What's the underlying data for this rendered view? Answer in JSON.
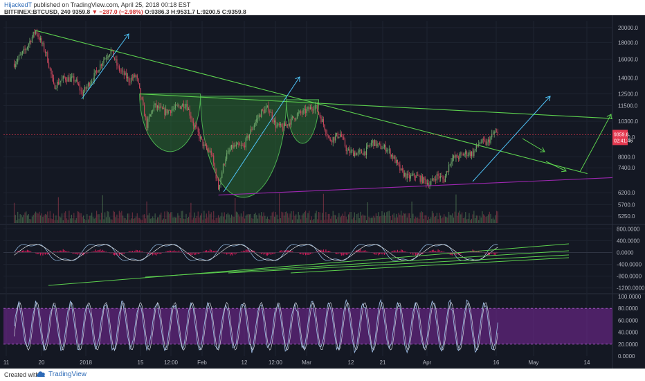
{
  "header": {
    "author": "HijackedT",
    "published": "published on TradingView.com, April 25, 2018 00:18 EST",
    "symbol": "BITFINEX:BTCUSD, 240",
    "last": "9359.8",
    "change_arrow": "▼",
    "change": "−287.0 (−2.98%)",
    "open": "O:9386.3",
    "high": "H:9531.7",
    "low": "L:9200.5",
    "close": "C:9359.8"
  },
  "footer": {
    "created_with": "Created with",
    "brand": "TradingView"
  },
  "colors": {
    "background": "#141823",
    "up": "#6ea86a",
    "down": "#c8475c",
    "trend_green": "#4caf50",
    "cyan_arrow": "#4fc3f7",
    "purple_line": "#9c27b0",
    "macd_hist": "#e91e63",
    "stoch_band": "#7b2a9e",
    "price_badge": "#e53950"
  },
  "price_axis": {
    "ticks": [
      "20000.0",
      "18000.0",
      "16000.0",
      "14000.0",
      "12500.0",
      "11500.0",
      "10300.0",
      "9200.0",
      "8000.0",
      "7400.0",
      "6200.0",
      "5700.0",
      "5250.0"
    ],
    "badge_price": "9359.8",
    "badge_time": "02:41:46"
  },
  "macd_axis": {
    "ticks": [
      "800.0000",
      "400.0000",
      "0.0000",
      "-400.0000",
      "-800.0000",
      "-1200.0000"
    ]
  },
  "stoch_axis": {
    "ticks": [
      "100.0000",
      "80.0000",
      "60.0000",
      "40.0000",
      "20.0000",
      "0.0000"
    ]
  },
  "time_axis": {
    "ticks": [
      "11",
      "20",
      "2018",
      "15",
      "12:00",
      "Feb",
      "12",
      "12:00",
      "Mar",
      "12",
      "21",
      "Apr",
      "16",
      "May",
      "14"
    ]
  },
  "chart_data": {
    "type": "candlestick",
    "symbol": "BTCUSD",
    "exchange": "BITFINEX",
    "interval": "240",
    "y_scale": "log",
    "ylim": [
      5000,
      21000
    ],
    "price_series": [
      [
        "2017-12-11",
        15500
      ],
      [
        "2017-12-14",
        17000
      ],
      [
        "2017-12-17",
        19600
      ],
      [
        "2017-12-20",
        16500
      ],
      [
        "2017-12-22",
        13200
      ],
      [
        "2017-12-25",
        14000
      ],
      [
        "2017-12-28",
        13800
      ],
      [
        "2017-12-30",
        12500
      ],
      [
        "2018-01-02",
        14000
      ],
      [
        "2018-01-05",
        16000
      ],
      [
        "2018-01-07",
        17000
      ],
      [
        "2018-01-09",
        15000
      ],
      [
        "2018-01-12",
        13800
      ],
      [
        "2018-01-14",
        14200
      ],
      [
        "2018-01-16",
        11300
      ],
      [
        "2018-01-17",
        10000
      ],
      [
        "2018-01-19",
        11500
      ],
      [
        "2018-01-22",
        11000
      ],
      [
        "2018-01-25",
        11300
      ],
      [
        "2018-01-28",
        11700
      ],
      [
        "2018-01-30",
        10100
      ],
      [
        "2018-02-02",
        8600
      ],
      [
        "2018-02-04",
        8200
      ],
      [
        "2018-02-06",
        6400
      ],
      [
        "2018-02-08",
        8000
      ],
      [
        "2018-02-10",
        8600
      ],
      [
        "2018-02-13",
        8600
      ],
      [
        "2018-02-16",
        10100
      ],
      [
        "2018-02-18",
        11000
      ],
      [
        "2018-02-20",
        11300
      ],
      [
        "2018-02-22",
        10000
      ],
      [
        "2018-02-24",
        9800
      ],
      [
        "2018-02-26",
        10300
      ],
      [
        "2018-02-28",
        10800
      ],
      [
        "2018-03-02",
        11000
      ],
      [
        "2018-03-05",
        11500
      ],
      [
        "2018-03-07",
        10300
      ],
      [
        "2018-03-09",
        9000
      ],
      [
        "2018-03-12",
        9400
      ],
      [
        "2018-03-14",
        8300
      ],
      [
        "2018-03-17",
        8200
      ],
      [
        "2018-03-19",
        8300
      ],
      [
        "2018-03-21",
        8900
      ],
      [
        "2018-03-23",
        8600
      ],
      [
        "2018-03-25",
        8500
      ],
      [
        "2018-03-27",
        7900
      ],
      [
        "2018-03-29",
        7200
      ],
      [
        "2018-03-31",
        6900
      ],
      [
        "2018-04-02",
        7000
      ],
      [
        "2018-04-04",
        6800
      ],
      [
        "2018-04-06",
        6600
      ],
      [
        "2018-04-08",
        7000
      ],
      [
        "2018-04-10",
        6800
      ],
      [
        "2018-04-12",
        7900
      ],
      [
        "2018-04-14",
        8000
      ],
      [
        "2018-04-16",
        8200
      ],
      [
        "2018-04-18",
        8200
      ],
      [
        "2018-04-20",
        8900
      ],
      [
        "2018-04-22",
        8800
      ],
      [
        "2018-04-24",
        9500
      ],
      [
        "2018-04-25",
        9360
      ]
    ],
    "annotations": {
      "descending_trendline": [
        [
          "2017-12-17",
          19600
        ],
        [
          "2018-05-20",
          7100
        ]
      ],
      "neckline": [
        [
          "2018-01-15",
          12500
        ],
        [
          "2018-05-27",
          10500
        ]
      ],
      "support_line": [
        [
          "2018-02-06",
          6100
        ],
        [
          "2018-05-27",
          6900
        ]
      ],
      "shaded_cups": [
        {
          "from": "2018-01-15",
          "to": "2018-02-01",
          "top": 12500,
          "bottom": 8300
        },
        {
          "from": "2018-02-01",
          "to": "2018-02-25",
          "top": 12300,
          "bottom": 6000
        },
        {
          "from": "2018-02-25",
          "to": "2018-03-06",
          "top": 12000,
          "bottom": 8800
        }
      ]
    },
    "macd": {
      "ylim": [
        -1300,
        900
      ]
    },
    "stochastic": {
      "ylim": [
        0,
        100
      ],
      "band": [
        20,
        80
      ]
    }
  }
}
